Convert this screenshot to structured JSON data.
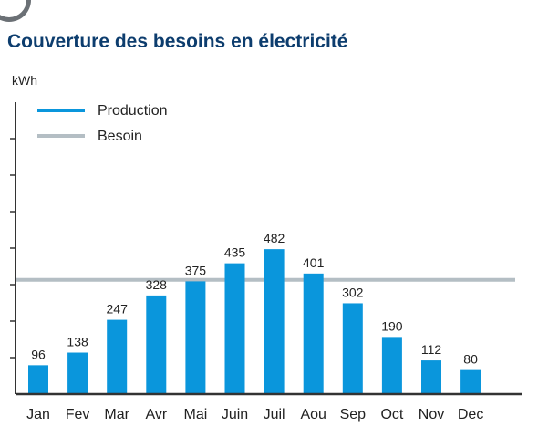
{
  "title": "Couverture des besoins en électricité",
  "unit_label": "kWh",
  "colors": {
    "production": "#0a96dc",
    "besoin": "#b4bec4",
    "axis": "#333333",
    "title": "#0d3d6e"
  },
  "chart_data": {
    "type": "bar",
    "title": "Couverture des besoins en électricité",
    "xlabel": "",
    "ylabel": "kWh",
    "ylim": [
      0,
      2000
    ],
    "grid": false,
    "legend": "top-left",
    "categories": [
      "Jan",
      "Fev",
      "Mar",
      "Avr",
      "Mai",
      "Juin",
      "Juil",
      "Aou",
      "Sep",
      "Oct",
      "Nov",
      "Dec"
    ],
    "series": [
      {
        "name": "Production",
        "type": "bar",
        "values": [
          96,
          138,
          247,
          328,
          375,
          435,
          482,
          401,
          302,
          190,
          112,
          80
        ]
      },
      {
        "name": "Besoin",
        "type": "line",
        "constant": 380
      }
    ]
  }
}
